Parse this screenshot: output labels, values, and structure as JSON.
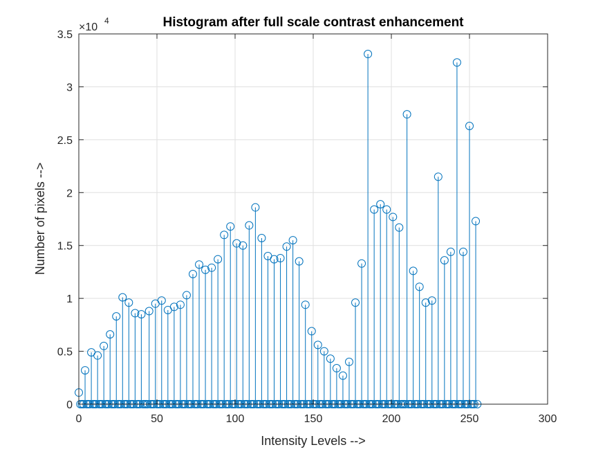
{
  "chart_data": {
    "type": "stem",
    "title": "Histogram after full scale contrast enhancement",
    "xlabel": "Intensity Levels -->",
    "ylabel": "Number of pixels  -->",
    "xlim": [
      0,
      300
    ],
    "ylim": [
      0,
      35000
    ],
    "xticks": [
      0,
      50,
      100,
      150,
      200,
      250,
      300
    ],
    "yticks": [
      0,
      5000,
      10000,
      15000,
      20000,
      25000,
      30000,
      35000
    ],
    "ytick_labels": [
      "0",
      "0.5",
      "1",
      "1.5",
      "2",
      "2.5",
      "3",
      "3.5"
    ],
    "xtick_labels": [
      "0",
      "50",
      "100",
      "150",
      "200",
      "250",
      "300"
    ],
    "y_multiplier_base": "×10",
    "y_multiplier_exp": "4",
    "grid": true,
    "color": "#0072BD",
    "x_range": [
      0,
      255
    ],
    "nonzero": [
      [
        0,
        1100
      ],
      [
        4,
        3200
      ],
      [
        8,
        4900
      ],
      [
        12,
        4600
      ],
      [
        16,
        5500
      ],
      [
        20,
        6600
      ],
      [
        24,
        8300
      ],
      [
        28,
        10100
      ],
      [
        32,
        9600
      ],
      [
        36,
        8600
      ],
      [
        40,
        8500
      ],
      [
        45,
        8800
      ],
      [
        49,
        9500
      ],
      [
        53,
        9800
      ],
      [
        57,
        8900
      ],
      [
        61,
        9200
      ],
      [
        65,
        9400
      ],
      [
        69,
        10300
      ],
      [
        73,
        12300
      ],
      [
        77,
        13200
      ],
      [
        81,
        12700
      ],
      [
        85,
        12900
      ],
      [
        89,
        13700
      ],
      [
        93,
        16000
      ],
      [
        97,
        16800
      ],
      [
        101,
        15200
      ],
      [
        105,
        15000
      ],
      [
        109,
        16900
      ],
      [
        113,
        18600
      ],
      [
        117,
        15700
      ],
      [
        121,
        14000
      ],
      [
        125,
        13700
      ],
      [
        129,
        13800
      ],
      [
        133,
        14900
      ],
      [
        137,
        15500
      ],
      [
        141,
        13500
      ],
      [
        145,
        9400
      ],
      [
        149,
        6900
      ],
      [
        153,
        5600
      ],
      [
        157,
        5000
      ],
      [
        161,
        4300
      ],
      [
        165,
        3400
      ],
      [
        169,
        2700
      ],
      [
        173,
        4000
      ],
      [
        177,
        9600
      ],
      [
        181,
        13300
      ],
      [
        185,
        33100
      ],
      [
        189,
        18400
      ],
      [
        193,
        18900
      ],
      [
        197,
        18400
      ],
      [
        201,
        17700
      ],
      [
        205,
        16700
      ],
      [
        210,
        27400
      ],
      [
        214,
        12600
      ],
      [
        218,
        11100
      ],
      [
        222,
        9600
      ],
      [
        226,
        9800
      ],
      [
        230,
        21500
      ],
      [
        234,
        13600
      ],
      [
        238,
        14400
      ],
      [
        242,
        32300
      ],
      [
        246,
        14400
      ],
      [
        250,
        26300
      ],
      [
        254,
        17300
      ]
    ]
  }
}
